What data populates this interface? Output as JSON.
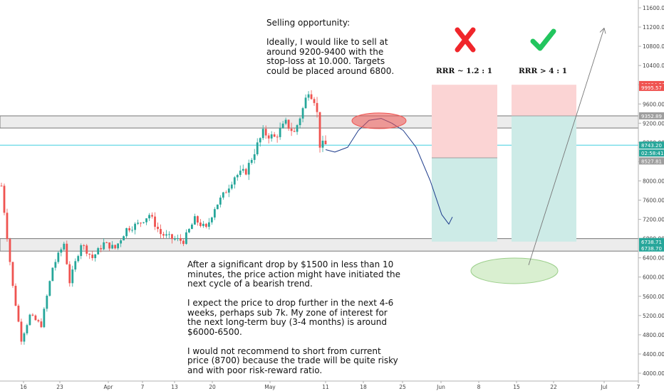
{
  "colors": {
    "up": "#26a69a",
    "down": "#ef5350",
    "zone_fill": "#ececec",
    "reward_fill": "#cdebe7",
    "risk_fill": "#fbd4d4",
    "path": "#1e3c8c",
    "price_line": "#26c6da",
    "axis_text": "#444444"
  },
  "annotations": {
    "top": "Selling opportunity:\n\nIdeally, I would like to sell at around 9200-9400 with the stop-loss at 10.000. Targets could be placed around 6800.",
    "bottom": "After a significant drop by $1500 in less than 10 minutes, the price action might have initiated the next cycle of a bearish trend.\n\nI expect the price to drop further in the next 4-6 weeks, perhaps sub 7k. My zone of interest for the next long-term buy (3-4 months) is around $6000-6500.\n\nI would not recommend to short from current price (8700) because the trade will be quite risky and with poor risk-reward ratio.",
    "rrr_left": "RRR ~ 1.2 : 1",
    "rrr_right": "RRR > 4 : 1"
  },
  "icons": {
    "left": "red-cross-icon",
    "right": "green-check-icon"
  },
  "chart_data": {
    "type": "candlestick",
    "x_ticks": [
      "16",
      "23",
      "Apr",
      "7",
      "13",
      "20",
      "May",
      "11",
      "18",
      "25",
      "Jun",
      "8",
      "15",
      "22",
      "Jul",
      "7"
    ],
    "y_ticks": [
      4000,
      4400,
      4800,
      5200,
      5600,
      6000,
      6400,
      6800,
      7200,
      7600,
      8000,
      8400,
      8800,
      9200,
      9600,
      10000,
      10400,
      10800,
      11200,
      11600
    ],
    "ylim": [
      3950,
      11700
    ],
    "price_labels": [
      {
        "label": "10004.26",
        "value": 10004.26,
        "color": "#ef5350"
      },
      {
        "label": "9995.57",
        "value": 9945,
        "color": "#ef5350"
      },
      {
        "label": "9352.89",
        "value": 9352.89,
        "color": "#9e9e9e"
      },
      {
        "label": "8743.20",
        "value": 8743.2,
        "color": "#26a69a"
      },
      {
        "label": "02:58:41",
        "value": 8580,
        "color": "#26a69a"
      },
      {
        "label": "8527.81",
        "value": 8415,
        "color": "#9e9e9e"
      },
      {
        "label": "6738.71",
        "value": 6738.71,
        "color": "#26a69a"
      },
      {
        "label": "6738.70",
        "value": 6605,
        "color": "#26a69a"
      }
    ],
    "resistance_zone": [
      9100,
      9352.89
    ],
    "support_zone": [
      6540,
      6800
    ],
    "current_price": 8743.2,
    "trades": [
      {
        "name": "RRR ~ 1.2 : 1",
        "entry": 8480,
        "stop": 10000,
        "target": 6738
      },
      {
        "name": "RRR > 4 : 1",
        "entry": 9352.89,
        "stop": 10000,
        "target": 6738
      }
    ],
    "ohlc_keyframes": [
      [
        0,
        7900
      ],
      [
        4,
        5800
      ],
      [
        7,
        4700
      ],
      [
        10,
        5200
      ],
      [
        14,
        5000
      ],
      [
        18,
        6200
      ],
      [
        22,
        6700
      ],
      [
        24,
        5900
      ],
      [
        28,
        6700
      ],
      [
        32,
        6400
      ],
      [
        36,
        6700
      ],
      [
        40,
        6600
      ],
      [
        44,
        7000
      ],
      [
        48,
        7100
      ],
      [
        52,
        7300
      ],
      [
        56,
        6900
      ],
      [
        60,
        6800
      ],
      [
        64,
        6750
      ],
      [
        68,
        7200
      ],
      [
        72,
        7000
      ],
      [
        75,
        7450
      ],
      [
        78,
        7700
      ],
      [
        82,
        8100
      ],
      [
        86,
        8200
      ],
      [
        90,
        8750
      ],
      [
        92,
        9000
      ],
      [
        96,
        8900
      ],
      [
        100,
        9200
      ],
      [
        103,
        9000
      ],
      [
        106,
        9500
      ],
      [
        108,
        9900
      ],
      [
        110,
        9700
      ],
      [
        111,
        9400
      ],
      [
        112,
        8750
      ],
      [
        114,
        8750
      ]
    ],
    "drawn_path_prices": [
      8650,
      8600,
      8700,
      9050,
      9260,
      9300,
      9200,
      9050,
      8700,
      8000,
      7300,
      7100,
      7250
    ]
  }
}
